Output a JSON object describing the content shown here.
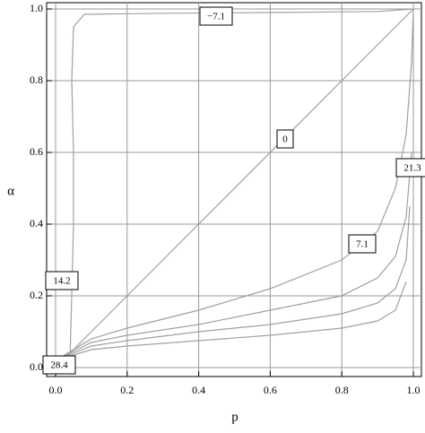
{
  "chart_data": {
    "type": "contour",
    "xlabel": "p",
    "ylabel": "α",
    "xlim": [
      0,
      1
    ],
    "ylim": [
      0,
      1
    ],
    "xticks": [
      {
        "value": 0,
        "label": "0.0"
      },
      0.2,
      0.4,
      0.6,
      0.8,
      {
        "value": 1,
        "label": "1.0"
      }
    ],
    "yticks": [
      {
        "value": 0,
        "label": "0.0"
      },
      0.2,
      0.4,
      0.6,
      0.8,
      {
        "value": 1,
        "label": "1.0"
      }
    ],
    "grid": true,
    "color": "#a0a0a0",
    "contours": [
      {
        "label": "−7.1",
        "x": [
          0.04,
          0.045,
          0.05,
          0.05,
          0.045,
          0.05,
          0.08,
          0.3,
          0.6,
          0.9,
          1.0
        ],
        "y": [
          0.02,
          0.2,
          0.4,
          0.6,
          0.8,
          0.95,
          0.985,
          0.988,
          0.99,
          0.993,
          1.0
        ]
      },
      {
        "label": "0",
        "x": [
          0,
          1
        ],
        "y": [
          0,
          1
        ]
      },
      {
        "label": "7.1",
        "x": [
          0,
          0.1,
          0.2,
          0.4,
          0.6,
          0.8,
          0.9,
          0.95,
          0.98,
          0.995,
          1.0
        ],
        "y": [
          0.02,
          0.08,
          0.11,
          0.16,
          0.22,
          0.3,
          0.38,
          0.5,
          0.65,
          0.85,
          1.0
        ]
      },
      {
        "label": "14.2",
        "x": [
          0,
          0.1,
          0.2,
          0.4,
          0.6,
          0.8,
          0.9,
          0.95,
          0.98,
          0.995
        ],
        "y": [
          0.02,
          0.07,
          0.09,
          0.12,
          0.16,
          0.2,
          0.25,
          0.31,
          0.42,
          0.6
        ]
      },
      {
        "label": "21.3",
        "x": [
          0,
          0.1,
          0.2,
          0.4,
          0.6,
          0.8,
          0.9,
          0.95,
          0.98,
          0.99
        ],
        "y": [
          0.02,
          0.06,
          0.075,
          0.1,
          0.12,
          0.15,
          0.18,
          0.22,
          0.3,
          0.45
        ]
      },
      {
        "label": "28.4",
        "x": [
          0,
          0.1,
          0.2,
          0.4,
          0.6,
          0.8,
          0.9,
          0.95,
          0.98
        ],
        "y": [
          0.02,
          0.05,
          0.06,
          0.075,
          0.09,
          0.11,
          0.13,
          0.16,
          0.24
        ]
      }
    ]
  }
}
